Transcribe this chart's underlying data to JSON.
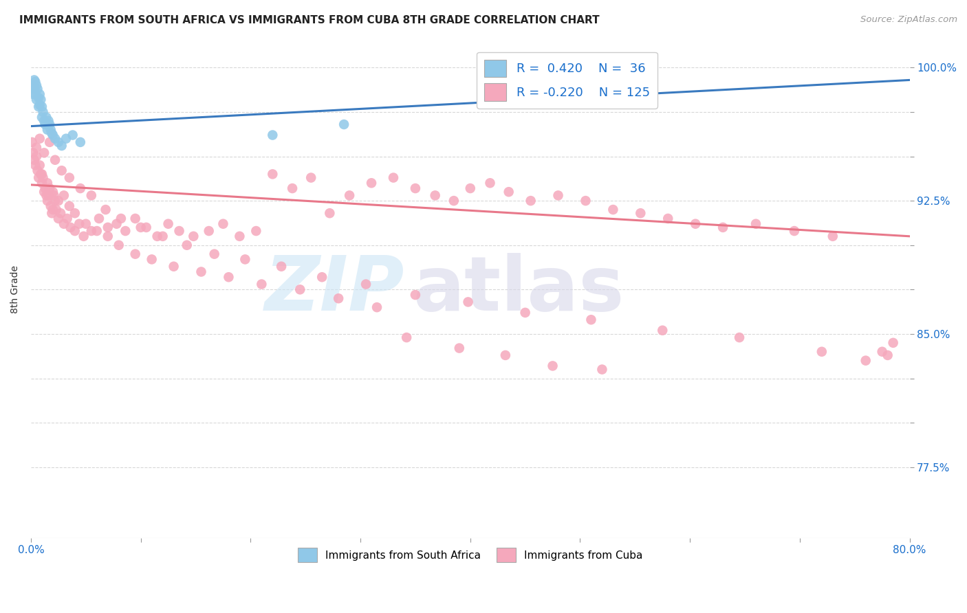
{
  "title": "IMMIGRANTS FROM SOUTH AFRICA VS IMMIGRANTS FROM CUBA 8TH GRADE CORRELATION CHART",
  "source": "Source: ZipAtlas.com",
  "ylabel": "8th Grade",
  "xlim": [
    0.0,
    0.8
  ],
  "ylim": [
    0.735,
    1.015
  ],
  "xticks": [
    0.0,
    0.1,
    0.2,
    0.3,
    0.4,
    0.5,
    0.6,
    0.7,
    0.8
  ],
  "xticklabels": [
    "0.0%",
    "",
    "",
    "",
    "",
    "",
    "",
    "",
    "80.0%"
  ],
  "ytick_vals": [
    0.775,
    0.8,
    0.825,
    0.85,
    0.875,
    0.9,
    0.925,
    0.95,
    0.975,
    1.0
  ],
  "ytick_labels": [
    "77.5%",
    "",
    "",
    "85.0%",
    "",
    "",
    "92.5%",
    "",
    "",
    "100.0%"
  ],
  "south_africa_color": "#90c8e8",
  "cuba_color": "#f5a8bc",
  "south_africa_line_color": "#3a7abf",
  "cuba_line_color": "#e8788a",
  "grid_color": "#d8d8d8",
  "sa_line_y0": 0.967,
  "sa_line_y1": 0.993,
  "cuba_line_y0": 0.934,
  "cuba_line_y1": 0.905,
  "sa_x": [
    0.001,
    0.002,
    0.003,
    0.003,
    0.004,
    0.004,
    0.005,
    0.005,
    0.006,
    0.007,
    0.007,
    0.008,
    0.008,
    0.009,
    0.01,
    0.01,
    0.011,
    0.012,
    0.013,
    0.014,
    0.015,
    0.016,
    0.017,
    0.018,
    0.019,
    0.02,
    0.022,
    0.025,
    0.028,
    0.032,
    0.038,
    0.045,
    0.22,
    0.285,
    0.5,
    0.51
  ],
  "sa_y": [
    0.99,
    0.985,
    0.993,
    0.988,
    0.992,
    0.985,
    0.99,
    0.982,
    0.988,
    0.983,
    0.978,
    0.985,
    0.979,
    0.982,
    0.978,
    0.972,
    0.975,
    0.97,
    0.968,
    0.972,
    0.965,
    0.97,
    0.968,
    0.965,
    0.963,
    0.962,
    0.96,
    0.958,
    0.956,
    0.96,
    0.962,
    0.958,
    0.962,
    0.968,
    0.998,
    0.992
  ],
  "cuba_x": [
    0.001,
    0.002,
    0.003,
    0.004,
    0.005,
    0.006,
    0.007,
    0.008,
    0.009,
    0.01,
    0.011,
    0.012,
    0.013,
    0.014,
    0.015,
    0.016,
    0.017,
    0.018,
    0.019,
    0.02,
    0.021,
    0.022,
    0.023,
    0.025,
    0.027,
    0.03,
    0.033,
    0.036,
    0.04,
    0.044,
    0.048,
    0.055,
    0.062,
    0.07,
    0.078,
    0.086,
    0.095,
    0.105,
    0.115,
    0.125,
    0.135,
    0.148,
    0.162,
    0.175,
    0.19,
    0.205,
    0.22,
    0.238,
    0.255,
    0.272,
    0.29,
    0.31,
    0.33,
    0.35,
    0.368,
    0.385,
    0.4,
    0.418,
    0.435,
    0.455,
    0.48,
    0.505,
    0.53,
    0.555,
    0.58,
    0.605,
    0.63,
    0.66,
    0.695,
    0.73,
    0.01,
    0.015,
    0.02,
    0.025,
    0.03,
    0.035,
    0.04,
    0.05,
    0.06,
    0.07,
    0.08,
    0.095,
    0.11,
    0.13,
    0.155,
    0.18,
    0.21,
    0.245,
    0.28,
    0.315,
    0.005,
    0.008,
    0.012,
    0.017,
    0.022,
    0.028,
    0.035,
    0.045,
    0.055,
    0.068,
    0.082,
    0.1,
    0.12,
    0.142,
    0.167,
    0.195,
    0.228,
    0.265,
    0.305,
    0.35,
    0.398,
    0.45,
    0.51,
    0.575,
    0.645,
    0.72,
    0.76,
    0.775,
    0.78,
    0.785,
    0.342,
    0.39,
    0.432,
    0.475,
    0.52
  ],
  "cuba_y": [
    0.958,
    0.952,
    0.948,
    0.945,
    0.95,
    0.942,
    0.938,
    0.945,
    0.94,
    0.935,
    0.938,
    0.93,
    0.932,
    0.928,
    0.925,
    0.928,
    0.932,
    0.922,
    0.918,
    0.92,
    0.928,
    0.925,
    0.92,
    0.915,
    0.918,
    0.912,
    0.915,
    0.91,
    0.908,
    0.912,
    0.905,
    0.908,
    0.915,
    0.91,
    0.912,
    0.908,
    0.915,
    0.91,
    0.905,
    0.912,
    0.908,
    0.905,
    0.908,
    0.912,
    0.905,
    0.908,
    0.94,
    0.932,
    0.938,
    0.918,
    0.928,
    0.935,
    0.938,
    0.932,
    0.928,
    0.925,
    0.932,
    0.935,
    0.93,
    0.925,
    0.928,
    0.925,
    0.92,
    0.918,
    0.915,
    0.912,
    0.91,
    0.912,
    0.908,
    0.905,
    0.94,
    0.935,
    0.93,
    0.925,
    0.928,
    0.922,
    0.918,
    0.912,
    0.908,
    0.905,
    0.9,
    0.895,
    0.892,
    0.888,
    0.885,
    0.882,
    0.878,
    0.875,
    0.87,
    0.865,
    0.955,
    0.96,
    0.952,
    0.958,
    0.948,
    0.942,
    0.938,
    0.932,
    0.928,
    0.92,
    0.915,
    0.91,
    0.905,
    0.9,
    0.895,
    0.892,
    0.888,
    0.882,
    0.878,
    0.872,
    0.868,
    0.862,
    0.858,
    0.852,
    0.848,
    0.84,
    0.835,
    0.84,
    0.838,
    0.845,
    0.848,
    0.842,
    0.838,
    0.832,
    0.83
  ]
}
